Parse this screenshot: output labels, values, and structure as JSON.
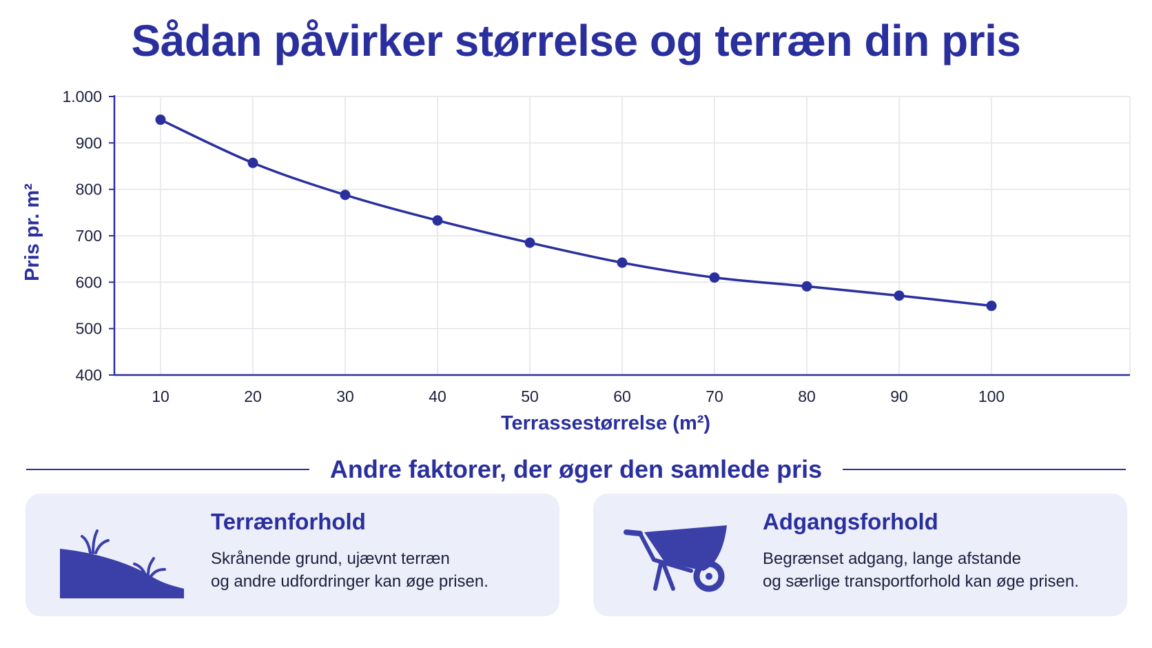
{
  "title": "Sådan påvirker størrelse og terræn din pris",
  "chart_data": {
    "type": "line",
    "x": [
      10,
      20,
      30,
      40,
      50,
      60,
      70,
      80,
      90,
      100
    ],
    "series": [
      {
        "values": [
          950,
          857,
          788,
          733,
          685,
          642,
          610,
          591,
          571,
          549
        ]
      }
    ],
    "xlabel": "Terrassestørrelse (m²)",
    "ylabel": "Pris pr. m²",
    "xticks": [
      "10",
      "20",
      "30",
      "40",
      "50",
      "60",
      "70",
      "80",
      "90",
      "100"
    ],
    "yticks": [
      "400",
      "500",
      "600",
      "700",
      "800",
      "900",
      "1.000"
    ],
    "ytick_values": [
      400,
      500,
      600,
      700,
      800,
      900,
      1000
    ],
    "ylim": [
      400,
      1000
    ],
    "xlim": [
      5,
      115
    ],
    "grid": true,
    "color": "#2a2f9e"
  },
  "section": {
    "heading": "Andre faktorer, der øger den samlede pris"
  },
  "cards": [
    {
      "icon": "slope-terrain-icon",
      "title": "Terrænforhold",
      "lines": [
        "Skrånende grund, ujævnt terræn",
        "og andre udfordringer kan øge prisen."
      ]
    },
    {
      "icon": "wheelbarrow-icon",
      "title": "Adgangsforhold",
      "lines": [
        "Begrænset adgang, lange afstande",
        "og særlige transportforhold kan øge prisen."
      ]
    }
  ],
  "colors": {
    "accent": "#2a2f9e",
    "card_background": "#eceef9",
    "grid": "#e4e4ea",
    "text": "#1c1f3d"
  }
}
